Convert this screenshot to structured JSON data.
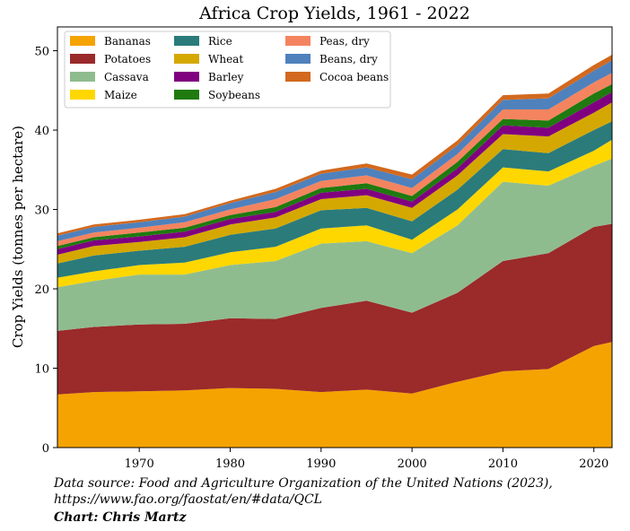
{
  "chart_data": {
    "type": "area",
    "stacked": true,
    "title": "Africa Crop Yields, 1961 - 2022",
    "xlabel": "",
    "ylabel": "Crop Yields (tonnes per hectare)",
    "xlim": [
      1961,
      2022
    ],
    "ylim": [
      0,
      53
    ],
    "xticks": [
      1970,
      1980,
      1990,
      2000,
      2010,
      2020
    ],
    "yticks": [
      0,
      10,
      20,
      30,
      40,
      50
    ],
    "grid": false,
    "legend_position": "top-left",
    "legend_columns": 3,
    "anchor_years": [
      1961,
      1965,
      1970,
      1975,
      1980,
      1985,
      1990,
      1995,
      2000,
      2005,
      2010,
      2015,
      2020,
      2022
    ],
    "cumulative_tops": [
      [
        6.7,
        7.0,
        7.1,
        7.2,
        7.5,
        7.4,
        7.0,
        7.3,
        6.8,
        8.3,
        9.6,
        9.9,
        12.8,
        13.3
      ],
      [
        14.7,
        15.2,
        15.5,
        15.6,
        16.3,
        16.2,
        17.6,
        18.5,
        17.0,
        19.5,
        23.5,
        24.5,
        27.8,
        28.2
      ],
      [
        20.2,
        21.0,
        21.8,
        21.8,
        23.0,
        23.5,
        25.7,
        26.0,
        24.5,
        28.0,
        33.5,
        33.0,
        35.5,
        36.4
      ],
      [
        21.4,
        22.2,
        23.0,
        23.3,
        24.6,
        25.3,
        27.6,
        28.0,
        26.2,
        30.0,
        35.3,
        34.8,
        37.4,
        38.8
      ],
      [
        23.2,
        24.2,
        24.8,
        25.3,
        26.8,
        27.6,
        29.9,
        30.2,
        28.5,
        32.5,
        37.6,
        37.1,
        40.0,
        41.1
      ],
      [
        24.3,
        25.4,
        25.9,
        26.5,
        28.1,
        29.0,
        31.3,
        31.8,
        30.2,
        34.3,
        39.5,
        39.2,
        42.2,
        43.5
      ],
      [
        25.0,
        26.1,
        26.6,
        27.2,
        28.8,
        29.7,
        32.1,
        32.6,
        31.0,
        35.2,
        40.6,
        40.3,
        43.5,
        44.8
      ],
      [
        25.4,
        26.5,
        27.1,
        27.7,
        29.3,
        30.3,
        32.7,
        33.3,
        31.7,
        36.0,
        41.4,
        41.2,
        44.6,
        45.8
      ],
      [
        26.0,
        27.1,
        27.7,
        28.4,
        30.0,
        31.3,
        33.6,
        34.3,
        32.7,
        37.0,
        42.6,
        42.6,
        46.0,
        47.2
      ],
      [
        26.7,
        27.8,
        28.4,
        29.1,
        30.8,
        32.2,
        34.5,
        35.3,
        33.8,
        38.1,
        43.8,
        44.0,
        47.5,
        48.8
      ],
      [
        27.0,
        28.1,
        28.7,
        29.4,
        31.1,
        32.6,
        34.9,
        35.8,
        34.4,
        38.7,
        44.4,
        44.6,
        48.2,
        49.5
      ]
    ],
    "series": [
      {
        "name": "Bananas",
        "color": "#f5a300"
      },
      {
        "name": "Potatoes",
        "color": "#9b2a2a"
      },
      {
        "name": "Cassava",
        "color": "#8fbc8f"
      },
      {
        "name": "Maize",
        "color": "#ffd700"
      },
      {
        "name": "Rice",
        "color": "#2b7b7b"
      },
      {
        "name": "Wheat",
        "color": "#d4a800"
      },
      {
        "name": "Barley",
        "color": "#800080"
      },
      {
        "name": "Soybeans",
        "color": "#1f7a0f"
      },
      {
        "name": "Peas, dry",
        "color": "#f4845f"
      },
      {
        "name": "Beans, dry",
        "color": "#4f81bd"
      },
      {
        "name": "Cocoa beans",
        "color": "#d2691e"
      }
    ]
  },
  "footer": {
    "source_line1": "Data source: Food and Agriculture Organization of the United Nations (2023),",
    "source_line2": "https://www.fao.org/faostat/en/#data/QCL",
    "credit": "Chart: Chris Martz"
  }
}
